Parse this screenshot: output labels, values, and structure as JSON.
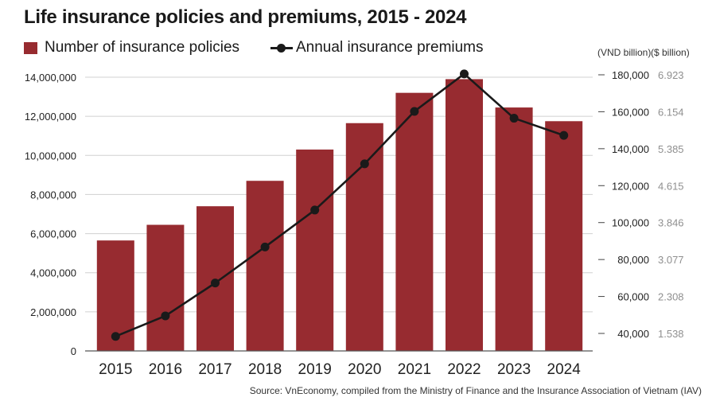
{
  "title": "Life insurance policies and premiums, 2015 - 2024",
  "legend": {
    "bars": "Number of insurance policies",
    "line": "Annual insurance premiums"
  },
  "units": {
    "vnd": "(VND billion)",
    "usd": "($ billion)"
  },
  "source": "Source:  VnEconomy, compiled from the Ministry of Finance and the Insurance Association of Vietnam (IAV)",
  "colors": {
    "bar": "#972b30",
    "line": "#1a1a1a",
    "grid": "#d0d0d0"
  },
  "chart_data": {
    "type": "bar+line",
    "categories": [
      "2015",
      "2016",
      "2017",
      "2018",
      "2019",
      "2020",
      "2021",
      "2022",
      "2023",
      "2024"
    ],
    "series": [
      {
        "name": "Number of insurance policies",
        "type": "bar",
        "axis": "left",
        "values": [
          5650000,
          6450000,
          7400000,
          8700000,
          10300000,
          11650000,
          13200000,
          13900000,
          12450000,
          11750000
        ]
      },
      {
        "name": "Annual insurance premiums",
        "type": "line",
        "axis": "right",
        "unit": "VND billion",
        "values": [
          38400,
          49500,
          67300,
          86800,
          106800,
          131800,
          160200,
          180500,
          156500,
          147200
        ]
      }
    ],
    "y_left": {
      "min": 0,
      "max": 14000000,
      "ticks": [
        0,
        2000000,
        4000000,
        6000000,
        8000000,
        10000000,
        12000000,
        14000000
      ],
      "tick_labels": [
        "0",
        "2,000,000",
        "4,000,000",
        "6,000,000",
        "8,000,000",
        "10,000,000",
        "12,000,000",
        "14,000,000"
      ]
    },
    "y_right": {
      "label": "(VND billion)",
      "ticks": [
        40000,
        60000,
        80000,
        100000,
        120000,
        140000,
        160000,
        180000
      ],
      "tick_labels": [
        "40,000",
        "60,000",
        "80,000",
        "100,000",
        "120,000",
        "140,000",
        "160,000",
        "180,000"
      ]
    },
    "y_right_usd": {
      "label": "($ billion)",
      "tick_labels": [
        "1.538",
        "2.308",
        "3.077",
        "3.846",
        "4.615",
        "5.385",
        "6.154",
        "6.923"
      ]
    },
    "grid": true,
    "legend_position": "top-left"
  }
}
